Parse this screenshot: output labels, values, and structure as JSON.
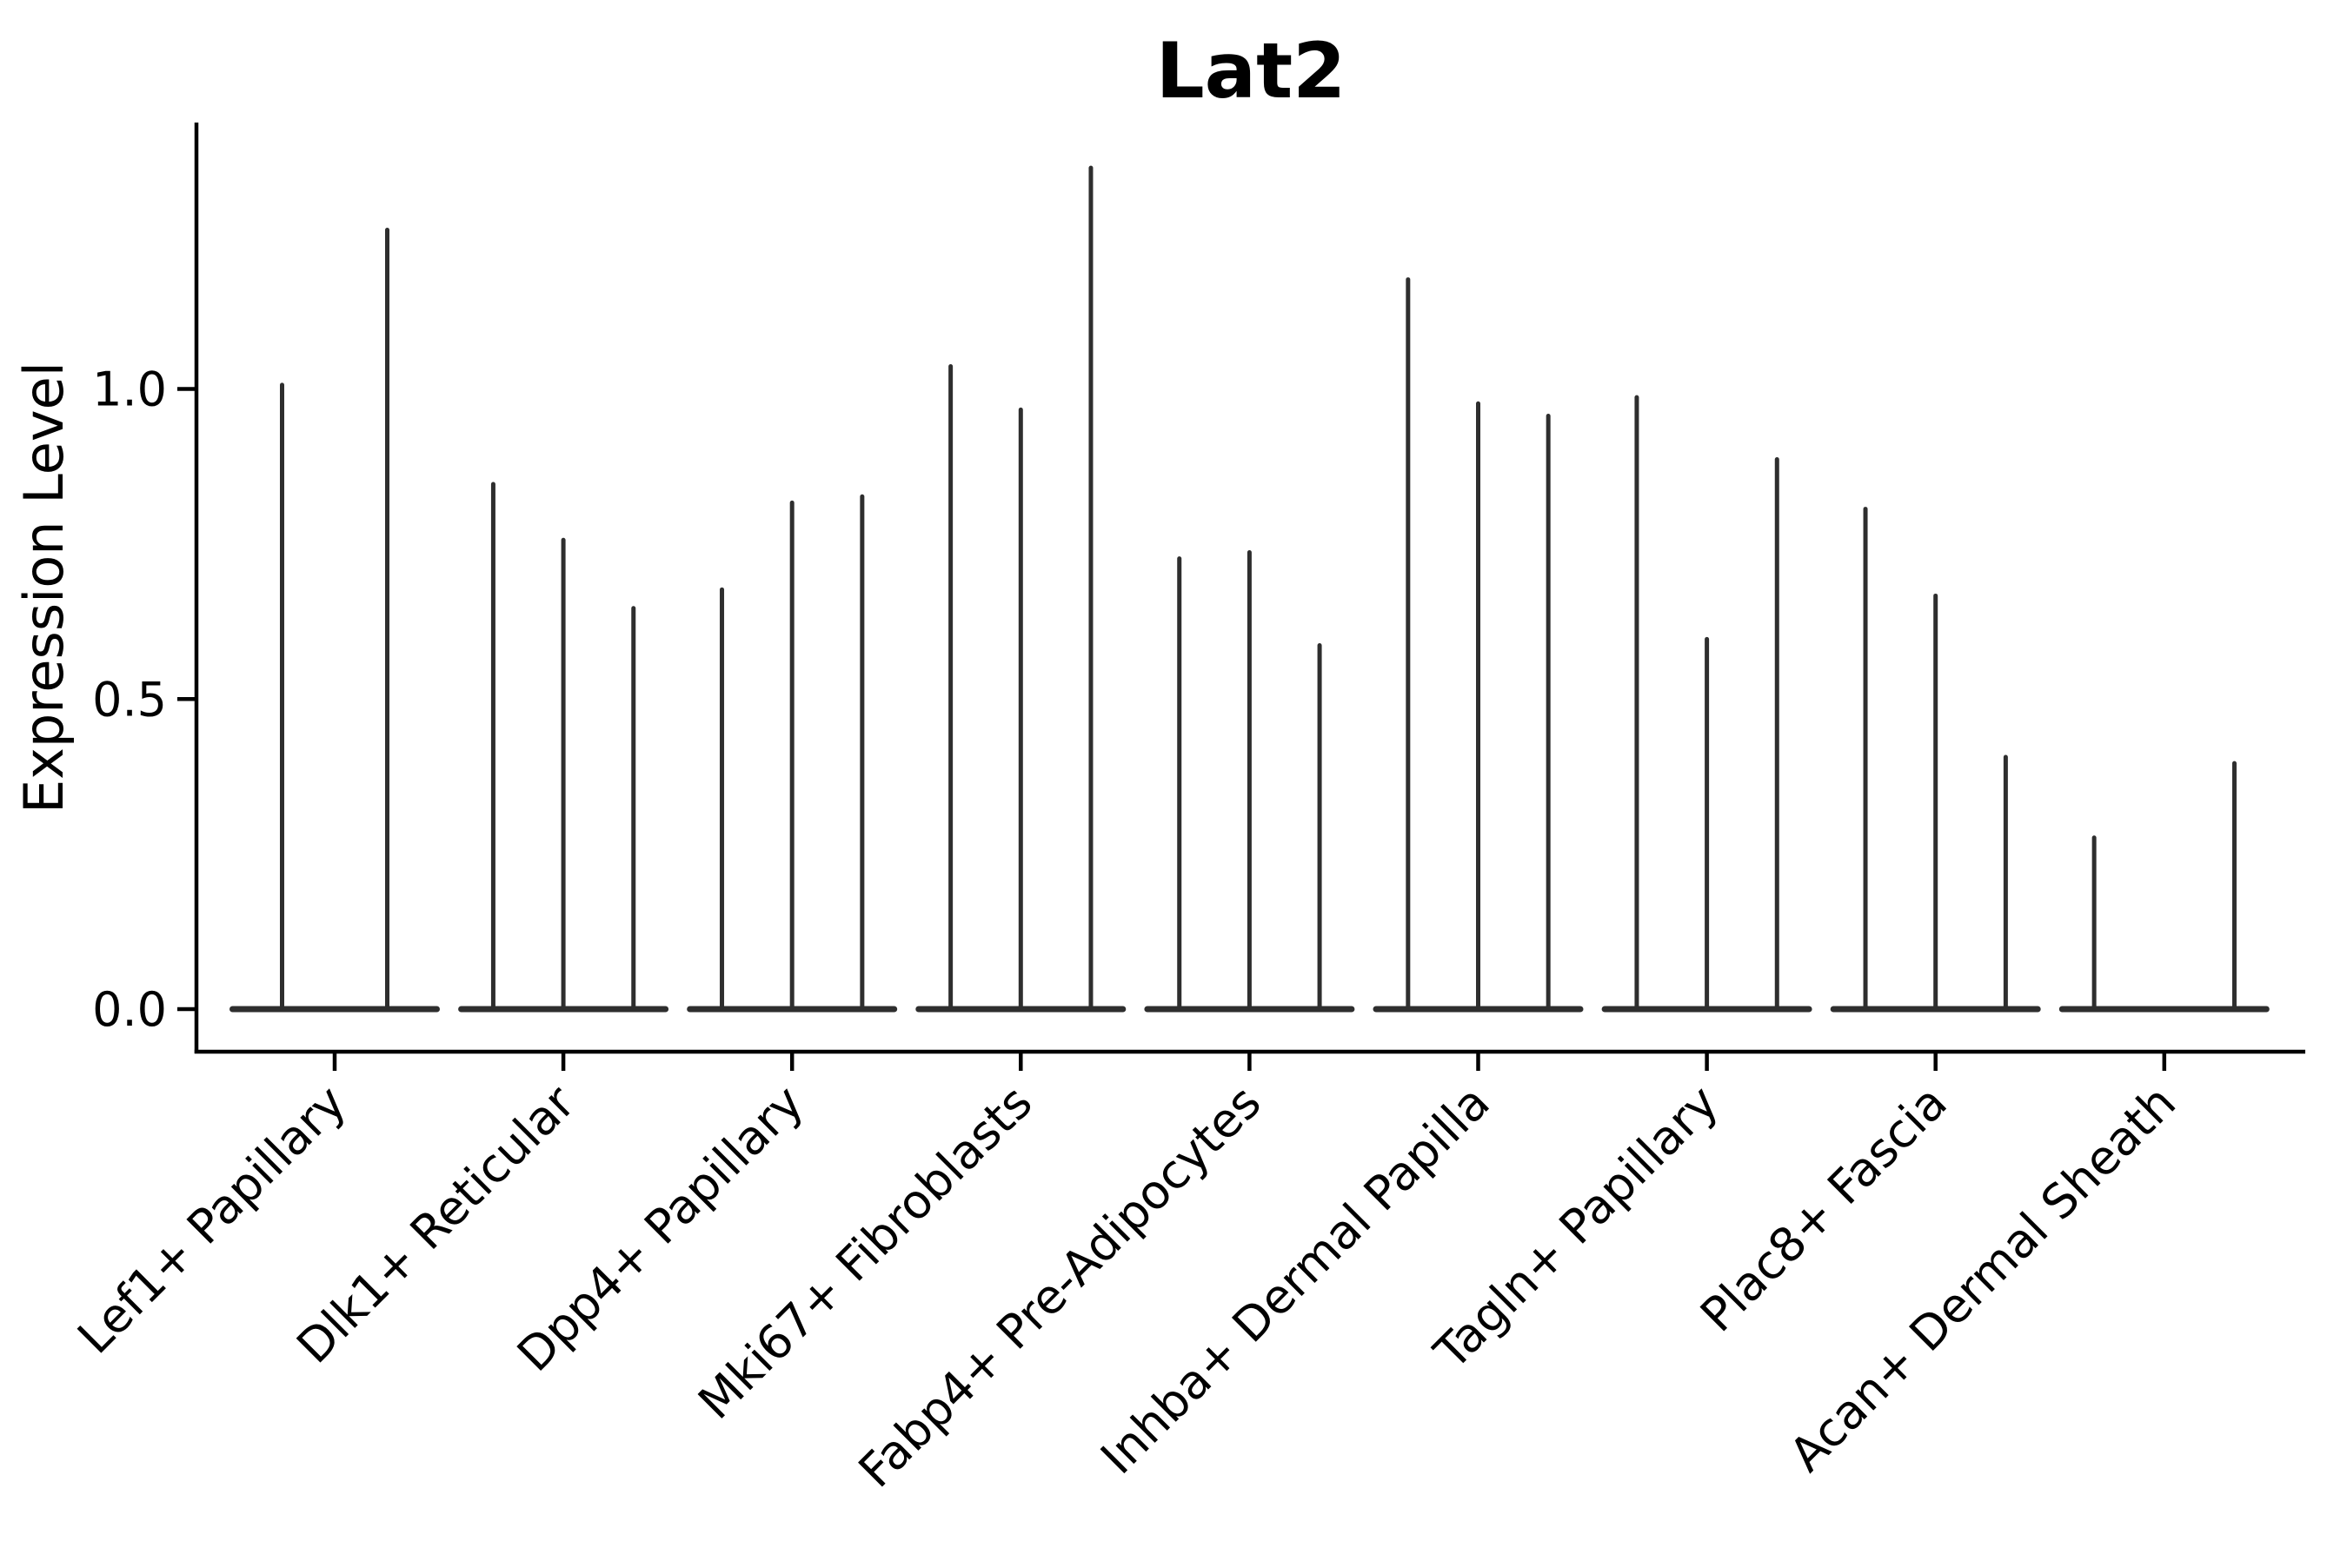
{
  "figure": {
    "title": "Lat2"
  },
  "chart_data": {
    "type": "violin",
    "title": "Lat2",
    "xlabel": "",
    "ylabel": "Expression Level",
    "ytick_labels": [
      "0.0",
      "0.5",
      "1.0"
    ],
    "ytick_values": [
      0.0,
      0.5,
      1.0
    ],
    "ylim": [
      -0.07,
      1.43
    ],
    "grid": false,
    "legend_position": "none",
    "description": "Violin plot of Lat2 expression; each category shows very thin spike-like violins (sparse expression) rising from a flat baseline at 0.",
    "categories": [
      "Lef1+ Papillary",
      "Dlk1+ Reticular",
      "Dpp4+ Papillary",
      "Mki67+ Fibroblasts",
      "Fabp4+ Pre-Adipocytes",
      "Inhba+ Dermal Papilla",
      "Tagln+ Papillary",
      "Plac8+ Fascia",
      "Acan+ Dermal Sheath"
    ],
    "groups": [
      {
        "label": "Lef1+ Papillary",
        "slots": 2,
        "violins": [
          {
            "slot": 1,
            "max": 1.01
          },
          {
            "slot": 2,
            "max": 1.26
          }
        ]
      },
      {
        "label": "Dlk1+ Reticular",
        "slots": 3,
        "violins": [
          {
            "slot": 1,
            "max": 0.85
          },
          {
            "slot": 2,
            "max": 0.76
          },
          {
            "slot": 3,
            "max": 0.65
          }
        ]
      },
      {
        "label": "Dpp4+ Papillary",
        "slots": 3,
        "violins": [
          {
            "slot": 1,
            "max": 0.68
          },
          {
            "slot": 2,
            "max": 0.82
          },
          {
            "slot": 3,
            "max": 0.83
          }
        ]
      },
      {
        "label": "Mki67+ Fibroblasts",
        "slots": 3,
        "violins": [
          {
            "slot": 1,
            "max": 1.04
          },
          {
            "slot": 2,
            "max": 0.97
          },
          {
            "slot": 3,
            "max": 1.36
          }
        ]
      },
      {
        "label": "Fabp4+ Pre-Adipocytes",
        "slots": 3,
        "violins": [
          {
            "slot": 1,
            "max": 0.73
          },
          {
            "slot": 2,
            "max": 0.74
          },
          {
            "slot": 3,
            "max": 0.59
          }
        ]
      },
      {
        "label": "Inhba+ Dermal Papilla",
        "slots": 3,
        "violins": [
          {
            "slot": 1,
            "max": 1.18
          },
          {
            "slot": 2,
            "max": 0.98
          },
          {
            "slot": 3,
            "max": 0.96
          }
        ]
      },
      {
        "label": "Tagln+ Papillary",
        "slots": 3,
        "violins": [
          {
            "slot": 1,
            "max": 0.99
          },
          {
            "slot": 2,
            "max": 0.6
          },
          {
            "slot": 3,
            "max": 0.89
          }
        ]
      },
      {
        "label": "Plac8+ Fascia",
        "slots": 3,
        "violins": [
          {
            "slot": 1,
            "max": 0.81
          },
          {
            "slot": 2,
            "max": 0.67
          },
          {
            "slot": 3,
            "max": 0.41
          }
        ]
      },
      {
        "label": "Acan+ Dermal Sheath",
        "slots": 3,
        "violins": [
          {
            "slot": 1,
            "max": 0.28
          },
          {
            "slot": 3,
            "max": 0.4
          }
        ]
      }
    ],
    "colors": {
      "violin": "#2e2e2e",
      "axis": "#000000",
      "text": "#000000",
      "background": "#ffffff"
    }
  }
}
